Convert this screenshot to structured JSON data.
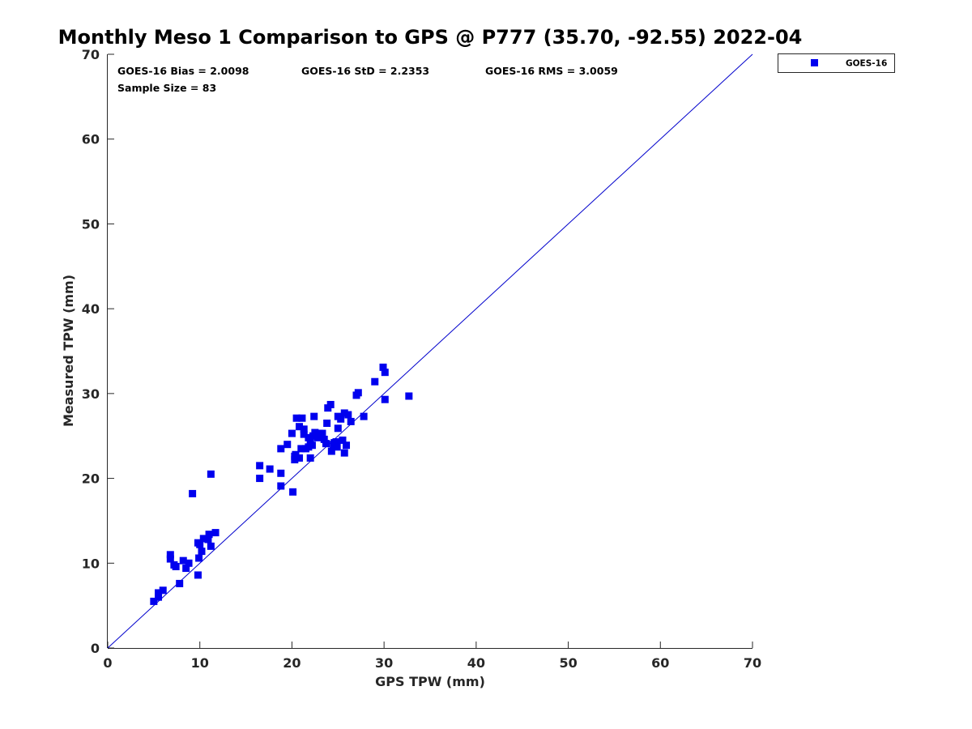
{
  "chart_data": {
    "type": "scatter",
    "title": "Monthly Meso 1 Comparison to GPS @ P777 (35.70, -92.55) 2022-04",
    "xlabel": "GPS TPW (mm)",
    "ylabel": "Measured TPW (mm)",
    "xlim": [
      0,
      70
    ],
    "ylim": [
      0,
      70
    ],
    "xticks": [
      "0",
      "10",
      "20",
      "30",
      "40",
      "50",
      "60",
      "70"
    ],
    "yticks": [
      "0",
      "10",
      "20",
      "30",
      "40",
      "50",
      "60",
      "70"
    ],
    "grid": false,
    "legend_position": "outside-top-right",
    "reference_line": {
      "x": [
        0,
        70
      ],
      "y": [
        0,
        70
      ],
      "color": "#0000cc"
    },
    "stats": {
      "bias": "GOES-16 Bias = 2.0098",
      "std": "GOES-16 StD = 2.2353",
      "rms": "GOES-16 RMS = 3.0059",
      "sample_size": "Sample Size = 83"
    },
    "series": [
      {
        "name": "GOES-16",
        "color": "#0000ee",
        "marker": "square",
        "points": [
          [
            5.0,
            5.5
          ],
          [
            5.5,
            6.5
          ],
          [
            5.5,
            6.0
          ],
          [
            6.0,
            6.8
          ],
          [
            6.8,
            11.0
          ],
          [
            6.8,
            10.5
          ],
          [
            7.2,
            9.8
          ],
          [
            7.4,
            9.6
          ],
          [
            7.8,
            7.6
          ],
          [
            8.2,
            10.3
          ],
          [
            8.5,
            9.4
          ],
          [
            8.8,
            10.0
          ],
          [
            9.2,
            18.2
          ],
          [
            9.8,
            12.4
          ],
          [
            9.8,
            8.6
          ],
          [
            9.9,
            10.6
          ],
          [
            10.0,
            12.2
          ],
          [
            10.2,
            11.4
          ],
          [
            10.4,
            12.9
          ],
          [
            10.9,
            12.8
          ],
          [
            11.0,
            13.4
          ],
          [
            11.2,
            12.0
          ],
          [
            11.2,
            20.5
          ],
          [
            11.7,
            13.6
          ],
          [
            16.5,
            21.5
          ],
          [
            16.5,
            20.0
          ],
          [
            17.6,
            21.1
          ],
          [
            18.8,
            20.6
          ],
          [
            18.8,
            19.1
          ],
          [
            18.8,
            23.5
          ],
          [
            19.5,
            24.0
          ],
          [
            20.0,
            25.3
          ],
          [
            20.1,
            18.4
          ],
          [
            20.3,
            22.2
          ],
          [
            20.4,
            22.8
          ],
          [
            20.5,
            27.1
          ],
          [
            20.8,
            22.4
          ],
          [
            20.8,
            26.1
          ],
          [
            21.0,
            23.5
          ],
          [
            21.1,
            27.1
          ],
          [
            21.3,
            25.8
          ],
          [
            21.3,
            25.2
          ],
          [
            21.5,
            23.5
          ],
          [
            21.8,
            23.7
          ],
          [
            21.8,
            24.8
          ],
          [
            22.0,
            22.4
          ],
          [
            22.0,
            24.3
          ],
          [
            22.2,
            23.9
          ],
          [
            22.3,
            25.0
          ],
          [
            22.4,
            27.3
          ],
          [
            22.5,
            25.4
          ],
          [
            22.8,
            24.8
          ],
          [
            23.0,
            25.3
          ],
          [
            23.3,
            25.3
          ],
          [
            23.5,
            24.6
          ],
          [
            23.7,
            24.1
          ],
          [
            23.8,
            26.5
          ],
          [
            23.9,
            28.3
          ],
          [
            24.2,
            28.7
          ],
          [
            24.3,
            23.2
          ],
          [
            24.5,
            24.0
          ],
          [
            24.8,
            24.3
          ],
          [
            24.9,
            23.7
          ],
          [
            25.0,
            25.9
          ],
          [
            25.0,
            27.3
          ],
          [
            25.3,
            27.0
          ],
          [
            25.5,
            24.5
          ],
          [
            25.7,
            23.0
          ],
          [
            25.7,
            27.7
          ],
          [
            25.9,
            23.9
          ],
          [
            26.1,
            27.5
          ],
          [
            26.4,
            26.7
          ],
          [
            27.0,
            29.8
          ],
          [
            27.2,
            30.1
          ],
          [
            27.8,
            27.3
          ],
          [
            29.0,
            31.4
          ],
          [
            29.9,
            33.1
          ],
          [
            30.1,
            29.3
          ],
          [
            30.1,
            32.5
          ],
          [
            32.7,
            29.7
          ],
          [
            24.6,
            24.2
          ],
          [
            20.3,
            22.6
          ],
          [
            22.6,
            25.1
          ]
        ]
      }
    ]
  }
}
